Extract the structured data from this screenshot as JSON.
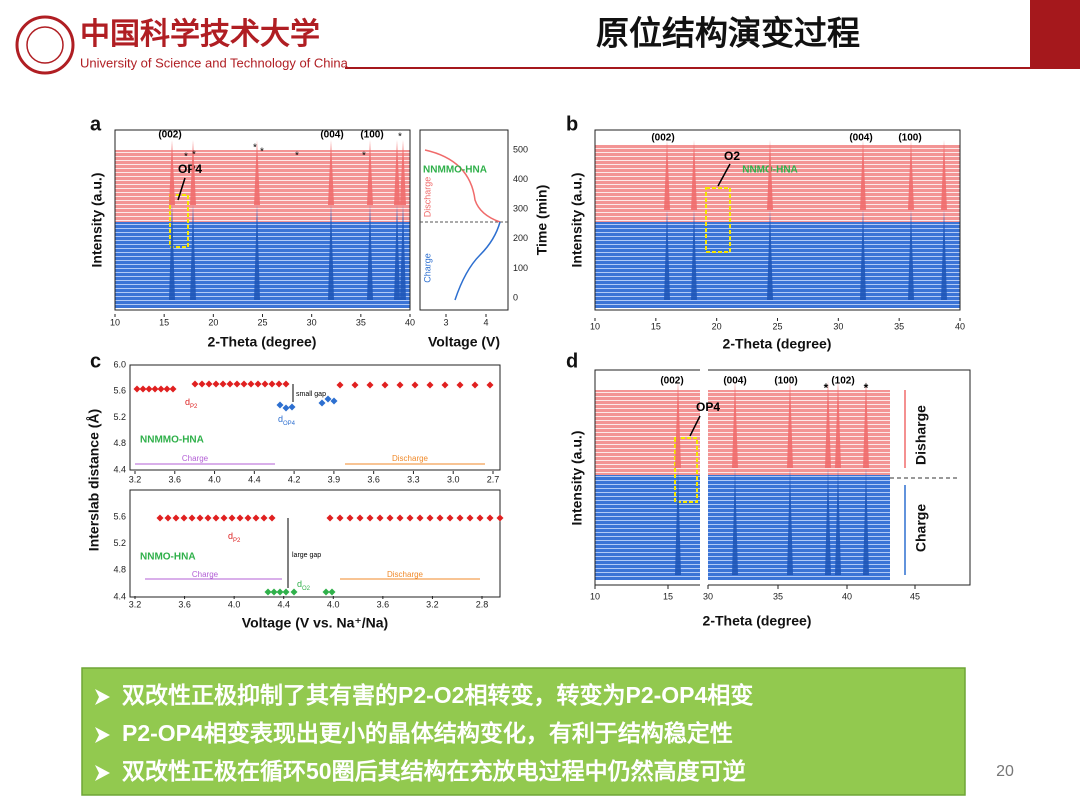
{
  "header": {
    "university_cn": "中国科学技术大学",
    "university_en": "University of Science and Technology of China",
    "title": "原位结构演变过程"
  },
  "panels": {
    "a": {
      "label": "a",
      "x_title": "2-Theta (degree)",
      "y_title": "Intensity (a.u.)",
      "x_ticks": [
        "10",
        "15",
        "20",
        "25",
        "30",
        "35",
        "40"
      ],
      "peak_labels": [
        "(002)",
        "(004)",
        "(100)"
      ],
      "star": "*",
      "phase": "OP4",
      "sample": "NNMMO-HNA",
      "voltage_title": "Voltage (V)",
      "voltage_ticks": [
        "3",
        "4"
      ],
      "time_title": "Time (min)",
      "time_ticks": [
        "0",
        "100",
        "200",
        "300",
        "400",
        "500"
      ],
      "discharge": "Discharge",
      "charge": "Charge"
    },
    "b": {
      "label": "b",
      "x_title": "2-Theta (degree)",
      "y_title": "Intensity (a.u.)",
      "x_ticks": [
        "10",
        "15",
        "20",
        "25",
        "30",
        "35",
        "40"
      ],
      "peak_labels": [
        "(002)",
        "(004)",
        "(100)"
      ],
      "phase": "O2",
      "sample": "NNMO-HNA"
    },
    "c": {
      "label": "c",
      "y_title": "Interslab distance (Å)",
      "x_title": "Voltage (V vs. Na⁺/Na)",
      "top": {
        "y_ticks": [
          "4.4",
          "4.8",
          "5.2",
          "5.6",
          "6.0"
        ],
        "x_ticks": [
          "3.2",
          "3.6",
          "4.0",
          "4.4",
          "4.2",
          "3.9",
          "3.6",
          "3.3",
          "3.0",
          "2.7"
        ],
        "d": "d",
        "p2_sub": "P2",
        "phase_sub": "OP4",
        "gap": "small gap",
        "sample": "NNMMO-HNA",
        "charge": "Charge",
        "discharge": "Discharge"
      },
      "bottom": {
        "y_ticks": [
          "4.4",
          "4.8",
          "5.2",
          "5.6"
        ],
        "x_ticks": [
          "3.2",
          "3.6",
          "4.0",
          "4.4",
          "4.0",
          "3.6",
          "3.2",
          "2.8"
        ],
        "d": "d",
        "p2_sub": "P2",
        "phase_sub": "O2",
        "gap": "large gap",
        "sample": "NNMO-HNA",
        "charge": "Charge",
        "discharge": "Discharge"
      }
    },
    "d": {
      "label": "d",
      "x_title": "2-Theta (degree)",
      "y_title": "Intensity (a.u.)",
      "x_ticks": [
        "10",
        "15",
        "30",
        "35",
        "40",
        "45"
      ],
      "peak_labels": [
        "(002)",
        "(004)",
        "(100)",
        "(102)"
      ],
      "star": "*",
      "phase": "OP4",
      "discharge": "Disharge",
      "charge": "Charge"
    }
  },
  "bullets": [
    "双改性正极抑制了其有害的P2-O2相转变，转变为P2-OP4相变",
    "P2-OP4相变表现出更小的晶体结构变化，有利于结构稳定性",
    "双改性正极在循环50圈后其结构在充放电过程中仍然高度可逆"
  ],
  "page_number": "20"
}
